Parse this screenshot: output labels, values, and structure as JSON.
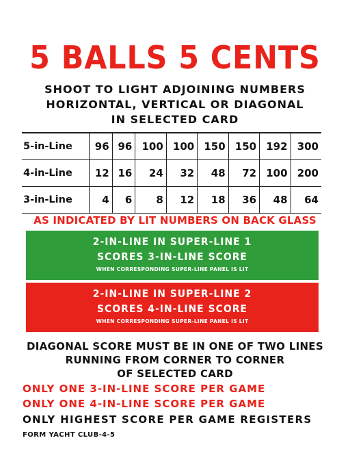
{
  "title": "5 BALLS 5 CENTS",
  "subtitle": [
    "SHOOT TO LIGHT ADJOINING NUMBERS",
    "HORIZONTAL, VERTICAL OR DIAGONAL",
    "IN SELECTED CARD"
  ],
  "score_table": {
    "rows": [
      {
        "label": "5-in-Line",
        "values": [
          "96",
          "96",
          "100",
          "100",
          "150",
          "150",
          "192",
          "300"
        ]
      },
      {
        "label": "4-in-Line",
        "values": [
          "12",
          "16",
          "24",
          "32",
          "48",
          "72",
          "100",
          "200"
        ]
      },
      {
        "label": "3-in-Line",
        "values": [
          "4",
          "6",
          "8",
          "12",
          "18",
          "36",
          "48",
          "64"
        ]
      }
    ]
  },
  "lit_note": "AS INDICATED BY LIT NUMBERS ON BACK GLASS",
  "super_line_1": {
    "line1": "2-IN-LINE IN SUPER-LINE 1",
    "line2": "SCORES 3-IN-LINE SCORE",
    "line3": "WHEN CORRESPONDING SUPER-LINE PANEL IS LIT",
    "color": "#2f9e3a"
  },
  "super_line_2": {
    "line1": "2-IN-LINE IN SUPER-LINE 2",
    "line2": "SCORES 4-IN-LINE SCORE",
    "line3": "WHEN CORRESPONDING SUPER-LINE PANEL IS LIT",
    "color": "#e8231c"
  },
  "diagonal_rule": [
    "DIAGONAL SCORE MUST BE IN ONE OF TWO LINES",
    "RUNNING FROM CORNER TO CORNER",
    "OF SELECTED CARD"
  ],
  "limits": [
    "ONLY ONE 3-IN-LINE SCORE PER GAME",
    "ONLY ONE 4-IN-LINE SCORE PER GAME"
  ],
  "registers": "ONLY HIGHEST SCORE PER GAME REGISTERS",
  "form": "FORM YACHT CLUB-4-5"
}
